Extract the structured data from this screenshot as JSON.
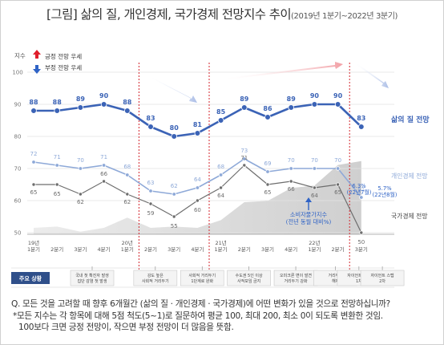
{
  "title": "[그림] 삶의 질, 개인경제, 국가경제 전망지수 추이",
  "subtitle": "(2019년 1분기~2022년 3분기)",
  "chart_data": {
    "type": "line",
    "y_axis_title": "지수",
    "ylim": [
      50,
      100
    ],
    "y_ticks": [
      50,
      60,
      70,
      80,
      90,
      100
    ],
    "grid": "horizontal",
    "legend": [
      {
        "label": "긍정 전망 우세",
        "icon": "arrow-up-icon",
        "color": "#e01e2b"
      },
      {
        "label": "부정 전망 우세",
        "icon": "arrow-down-icon",
        "color": "#2f63c6"
      }
    ],
    "x_labels": [
      "19년\n1분기",
      "2분기",
      "3분기",
      "4분기",
      "20년\n1분기",
      "2분기",
      "3분기",
      "4분기",
      "21년\n1분기",
      "2분기",
      "3분기",
      "4분기",
      "22년\n1분기",
      "2분기",
      "3분기"
    ],
    "series": [
      {
        "name": "삶의 질 전망",
        "color": "#3b63b6",
        "values": [
          88,
          88,
          89,
          90,
          88,
          83,
          80,
          81,
          85,
          89,
          86,
          89,
          90,
          90,
          83
        ]
      },
      {
        "name": "개인경제 전망",
        "color": "#8ea9d8",
        "values": [
          72,
          71,
          70,
          71,
          68,
          63,
          62,
          64,
          68,
          73,
          69,
          70,
          70,
          70,
          61
        ]
      },
      {
        "name": "국가경제 전망",
        "color": "#6d6d6d",
        "values": [
          65,
          65,
          62,
          66,
          62,
          59,
          55,
          60,
          64,
          71,
          65,
          66,
          64,
          65,
          50
        ]
      }
    ],
    "area_series": {
      "name": "소비자물가지수\n(전년 동월 대비%)",
      "values": [
        0.5,
        0.6,
        0.2,
        0.5,
        1.3,
        0.5,
        0.6,
        0.5,
        1.1,
        2.5,
        2.6,
        3.6,
        3.8,
        5.4,
        5.7
      ]
    },
    "annotations": [
      {
        "text": "6.3%\n(22년7월)",
        "color": "#2f63c6"
      },
      {
        "text": "5.7%\n(22년8월)",
        "color": "#2f63c6"
      }
    ],
    "event_label": "주요 상황",
    "events": [
      {
        "x": 2.5,
        "text": "국내 첫 확진자 발생\n집단 감염 첫 발생"
      },
      {
        "x": 5.2,
        "text": "강도 높은\n사회적 거리두기"
      },
      {
        "x": 7.2,
        "text": "사회적 거리두기\n1단계로 완화"
      },
      {
        "x": 9.2,
        "text": "수도권 5인 이상\n사적모임 금지"
      },
      {
        "x": 11.2,
        "text": "오미크론 변이 발견\n거리두기 강화"
      },
      {
        "x": 12.9,
        "text": "거리두기\n해제"
      },
      {
        "x": 13.9,
        "text": "자이언트 스텝\n1차"
      },
      {
        "x": 14.9,
        "text": "자이언트 스텝\n2차"
      }
    ]
  },
  "question": {
    "line1": "Q. 모든 것을 고려할 때 향후 6개월간 (삶의 질 · 개인경제 · 국가경제)에 어떤 변화가 있을 것으로 전망하십니까?",
    "line2": "*모든 지수는 각 항목에 대해 5점 척도(5~1)로 질문하여 평균 100, 최대 200, 최소 0이 되도록 변환한 것임.",
    "line3": "100보다 크면 긍정 전망이, 작으면 부정 전망이 더 많음을 뜻함."
  }
}
